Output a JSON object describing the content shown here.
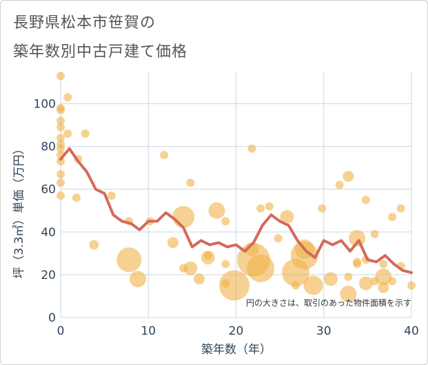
{
  "title_line1": "長野県松本市笹賀の",
  "title_line2": "築年数別中古戸建て価格",
  "chart_data": {
    "type": "scatter",
    "xlabel": "築年数（年）",
    "ylabel": "坪（3.3㎡）単価（万円）",
    "xlim": [
      0,
      40
    ],
    "ylim": [
      0,
      115
    ],
    "x_ticks": [
      0,
      10,
      20,
      30,
      40
    ],
    "y_ticks": [
      0,
      20,
      40,
      60,
      80,
      100
    ],
    "grid": true,
    "note": "円の大きさは、取引のあった物件面積を示す",
    "colors": {
      "bubble": "#f0b24a",
      "line": "#d4695a",
      "grid": "#c9d6e2"
    },
    "bubbles": [
      {
        "x": 0,
        "y": 113,
        "s": 6
      },
      {
        "x": 0,
        "y": 98,
        "s": 6
      },
      {
        "x": 0,
        "y": 97,
        "s": 6
      },
      {
        "x": 0,
        "y": 92,
        "s": 6
      },
      {
        "x": 0,
        "y": 89,
        "s": 6
      },
      {
        "x": 0,
        "y": 84,
        "s": 6
      },
      {
        "x": 0,
        "y": 81,
        "s": 6
      },
      {
        "x": 0,
        "y": 79,
        "s": 6
      },
      {
        "x": 0,
        "y": 76,
        "s": 6
      },
      {
        "x": 0,
        "y": 73,
        "s": 6
      },
      {
        "x": 0,
        "y": 67,
        "s": 6
      },
      {
        "x": 0,
        "y": 63,
        "s": 6
      },
      {
        "x": 0,
        "y": 57,
        "s": 6
      },
      {
        "x": 0.8,
        "y": 103,
        "s": 6
      },
      {
        "x": 0.8,
        "y": 86,
        "s": 6
      },
      {
        "x": 2,
        "y": 74,
        "s": 6
      },
      {
        "x": 1.8,
        "y": 56,
        "s": 6
      },
      {
        "x": 2.8,
        "y": 86,
        "s": 6
      },
      {
        "x": 3.8,
        "y": 34,
        "s": 7
      },
      {
        "x": 5.8,
        "y": 57,
        "s": 6
      },
      {
        "x": 7.8,
        "y": 45,
        "s": 6
      },
      {
        "x": 7.8,
        "y": 27,
        "s": 18
      },
      {
        "x": 8.8,
        "y": 18,
        "s": 12
      },
      {
        "x": 10.2,
        "y": 45,
        "s": 6
      },
      {
        "x": 11.8,
        "y": 76,
        "s": 6
      },
      {
        "x": 12.8,
        "y": 35,
        "s": 8
      },
      {
        "x": 14,
        "y": 47,
        "s": 16
      },
      {
        "x": 14,
        "y": 23,
        "s": 6
      },
      {
        "x": 14.8,
        "y": 63,
        "s": 6
      },
      {
        "x": 14.8,
        "y": 23,
        "s": 10
      },
      {
        "x": 15.8,
        "y": 18,
        "s": 8
      },
      {
        "x": 16.8,
        "y": 29,
        "s": 6
      },
      {
        "x": 16.8,
        "y": 28,
        "s": 10
      },
      {
        "x": 17.8,
        "y": 50,
        "s": 12
      },
      {
        "x": 18.8,
        "y": 45,
        "s": 6
      },
      {
        "x": 18.8,
        "y": 25,
        "s": 6
      },
      {
        "x": 18.8,
        "y": 16,
        "s": 6
      },
      {
        "x": 19.8,
        "y": 15,
        "s": 22
      },
      {
        "x": 21.8,
        "y": 79,
        "s": 6
      },
      {
        "x": 21.8,
        "y": 32,
        "s": 10
      },
      {
        "x": 22,
        "y": 27,
        "s": 24
      },
      {
        "x": 22.8,
        "y": 51,
        "s": 6
      },
      {
        "x": 22.8,
        "y": 23,
        "s": 20
      },
      {
        "x": 23.8,
        "y": 52,
        "s": 6
      },
      {
        "x": 24.8,
        "y": 37,
        "s": 6
      },
      {
        "x": 25.8,
        "y": 47,
        "s": 10
      },
      {
        "x": 26.8,
        "y": 21,
        "s": 20
      },
      {
        "x": 26.8,
        "y": 15,
        "s": 6
      },
      {
        "x": 27.8,
        "y": 32,
        "s": 14
      },
      {
        "x": 27.8,
        "y": 29,
        "s": 20
      },
      {
        "x": 28.8,
        "y": 15,
        "s": 14
      },
      {
        "x": 29.8,
        "y": 51,
        "s": 6
      },
      {
        "x": 30.8,
        "y": 18,
        "s": 10
      },
      {
        "x": 31.8,
        "y": 62,
        "s": 6
      },
      {
        "x": 32.8,
        "y": 66,
        "s": 8
      },
      {
        "x": 32.8,
        "y": 19,
        "s": 6
      },
      {
        "x": 32.8,
        "y": 11,
        "s": 12
      },
      {
        "x": 33.8,
        "y": 37,
        "s": 12
      },
      {
        "x": 33.8,
        "y": 26,
        "s": 6
      },
      {
        "x": 33.8,
        "y": 25,
        "s": 6
      },
      {
        "x": 34.8,
        "y": 55,
        "s": 6
      },
      {
        "x": 34.8,
        "y": 27,
        "s": 6
      },
      {
        "x": 34.8,
        "y": 16,
        "s": 10
      },
      {
        "x": 35.8,
        "y": 39,
        "s": 6
      },
      {
        "x": 35.8,
        "y": 17,
        "s": 6
      },
      {
        "x": 36.8,
        "y": 25,
        "s": 6
      },
      {
        "x": 36.8,
        "y": 19,
        "s": 12
      },
      {
        "x": 36.8,
        "y": 14,
        "s": 8
      },
      {
        "x": 37.8,
        "y": 47,
        "s": 6
      },
      {
        "x": 37.8,
        "y": 17,
        "s": 6
      },
      {
        "x": 38.8,
        "y": 51,
        "s": 6
      },
      {
        "x": 38.8,
        "y": 24,
        "s": 6
      },
      {
        "x": 40,
        "y": 15,
        "s": 6
      }
    ],
    "series": [
      {
        "x": [
          0,
          1,
          2,
          3,
          4,
          5,
          6,
          7,
          8,
          9,
          10,
          11,
          12,
          13,
          14,
          15,
          16,
          17,
          18,
          19,
          20,
          21,
          22,
          23,
          24,
          25,
          26,
          27,
          28,
          29,
          30,
          31,
          32,
          33,
          34,
          35,
          36,
          37,
          38,
          39,
          40
        ],
        "y": [
          74,
          79,
          73,
          68,
          60,
          58,
          48,
          45,
          44,
          41,
          45,
          45,
          49,
          46,
          42,
          33,
          36,
          34,
          35,
          33,
          34,
          31,
          35,
          43,
          48,
          45,
          43,
          36,
          31,
          28,
          36,
          34,
          36,
          31,
          36,
          27,
          26,
          29,
          25,
          22,
          21
        ]
      }
    ]
  }
}
